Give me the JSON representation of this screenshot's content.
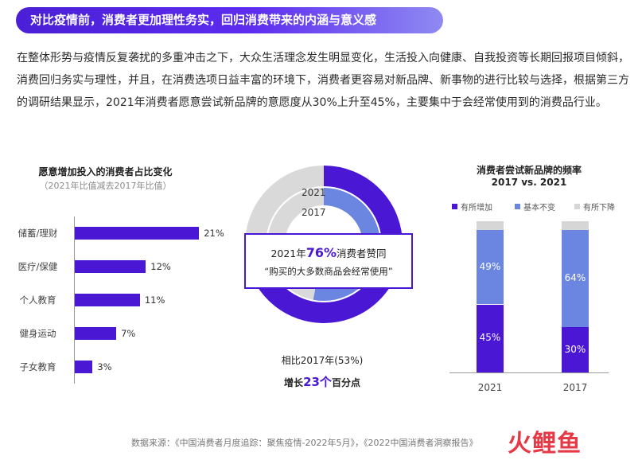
{
  "header": {
    "title": "对比疫情前，消费者更加理性务实，回归消费带来的内涵与意义感"
  },
  "intro": {
    "text": "在整体形势与疫情反复袭扰的多重冲击之下，大众生活理念发生明显变化，生活投入向健康、自我投资等长期回报项目倾斜，消费回归务实与理性，并且，在消费选项日益丰富的环境下，消费者更容易对新品牌、新事物的进行比较与选择，根据第三方的调研结果显示，2021年消费者愿意尝试新品牌的意愿度从30%上升至45%，主要集中于会经常使用到的消费品行业。"
  },
  "chart_data": [
    {
      "type": "bar",
      "orientation": "horizontal",
      "title": "愿意增加投入的消费者占比变化",
      "subtitle": "（2021年比值减去2017年比值）",
      "categories": [
        "储蓄/理财",
        "医疗/保健",
        "个人教育",
        "健身运动",
        "子女教育"
      ],
      "values": [
        21,
        12,
        11,
        7,
        3
      ],
      "value_labels": [
        "21%",
        "12%",
        "11%",
        "7%",
        "3%"
      ],
      "color": "#4a17d4",
      "xlim": [
        0,
        25
      ]
    },
    {
      "type": "pie",
      "variant": "concentric-donut",
      "rings": [
        {
          "name": "2021",
          "value": 76,
          "color": "#4a17d4",
          "rest_color": "#d9d9d9"
        },
        {
          "name": "2017",
          "value": 53,
          "color": "#6a86e0",
          "rest_color": "#d9d9d9"
        }
      ],
      "callout": {
        "prefix": "2021年",
        "highlight": "76%",
        "suffix": "消费者赞同",
        "quote": "“购买的大多数商品会经常使用”"
      },
      "note": {
        "line1": "相比2017年(53%)",
        "line2_prefix": "增长",
        "line2_highlight": "23个",
        "line2_suffix": "百分点"
      }
    },
    {
      "type": "bar",
      "variant": "stacked-100",
      "title": "消费者尝试新品牌的频率",
      "subtitle": "2017 vs. 2021",
      "categories": [
        "2021",
        "2017"
      ],
      "series": [
        {
          "name": "有所增加",
          "values": [
            45,
            30
          ],
          "labels": [
            "45%",
            "30%"
          ],
          "color": "#4a17d4"
        },
        {
          "name": "基本不变",
          "values": [
            49,
            64
          ],
          "labels": [
            "49%",
            "64%"
          ],
          "color": "#6a86e0"
        },
        {
          "name": "有所下降",
          "values": [
            6,
            6
          ],
          "labels": [
            "",
            ""
          ],
          "color": "#d6d6d6"
        }
      ],
      "ylim": [
        0,
        100
      ],
      "legend": "top"
    }
  ],
  "footer": {
    "source": "数据来源：《中国消费者月度追踪：聚焦疫情-2022年5月》，《2022中国消费者洞察报告》",
    "logo": "火鲤鱼"
  }
}
